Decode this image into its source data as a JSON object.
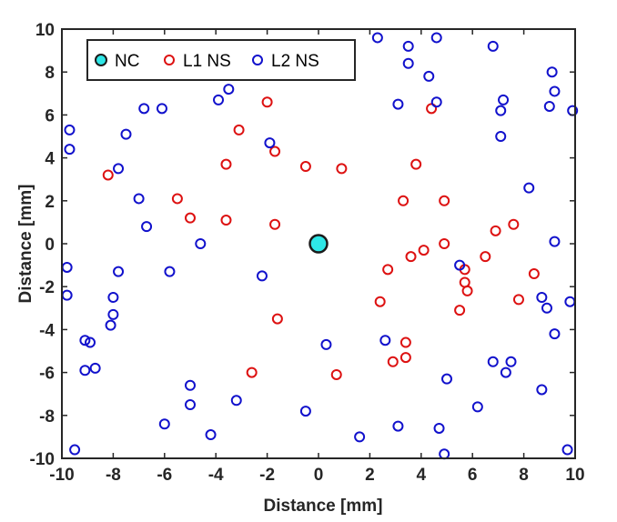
{
  "chart_data": {
    "type": "scatter",
    "xlabel": "Distance [mm]",
    "ylabel": "Distance [mm]",
    "xlim": [
      -10,
      10
    ],
    "ylim": [
      -10,
      10
    ],
    "xticks": [
      -10,
      -8,
      -6,
      -4,
      -2,
      0,
      2,
      4,
      6,
      8,
      10
    ],
    "yticks": [
      -10,
      -8,
      -6,
      -4,
      -2,
      0,
      2,
      4,
      6,
      8,
      10
    ],
    "grid": false,
    "legend": {
      "placement": "top-left",
      "orientation": "horizontal"
    },
    "series": [
      {
        "name": "NC",
        "color": "#1a1a1a",
        "fill": "#2ee6e6",
        "marker": "large-filled-circle",
        "points": [
          [
            0,
            0
          ]
        ]
      },
      {
        "name": "L1 NS",
        "color": "#dd1111",
        "marker": "open-circle",
        "points": [
          [
            -8.2,
            3.2
          ],
          [
            -5.5,
            2.1
          ],
          [
            -5.0,
            1.2
          ],
          [
            -3.6,
            1.1
          ],
          [
            -3.6,
            3.7
          ],
          [
            -3.1,
            5.3
          ],
          [
            -2.0,
            6.6
          ],
          [
            -1.7,
            4.3
          ],
          [
            -1.7,
            0.9
          ],
          [
            -1.6,
            -3.5
          ],
          [
            -2.6,
            -6.0
          ],
          [
            -0.5,
            3.6
          ],
          [
            0.9,
            3.5
          ],
          [
            0.7,
            -6.1
          ],
          [
            2.4,
            -2.7
          ],
          [
            2.7,
            -1.2
          ],
          [
            2.9,
            -5.5
          ],
          [
            3.3,
            2.0
          ],
          [
            3.6,
            -0.6
          ],
          [
            3.4,
            -4.6
          ],
          [
            3.4,
            -5.3
          ],
          [
            3.8,
            3.7
          ],
          [
            4.1,
            -0.3
          ],
          [
            4.4,
            6.3
          ],
          [
            4.9,
            2.0
          ],
          [
            4.9,
            0.0
          ],
          [
            5.5,
            -3.1
          ],
          [
            5.7,
            -1.2
          ],
          [
            5.7,
            -1.8
          ],
          [
            5.8,
            -2.2
          ],
          [
            6.5,
            -0.6
          ],
          [
            6.9,
            0.6
          ],
          [
            7.6,
            0.9
          ],
          [
            7.8,
            -2.6
          ],
          [
            8.4,
            -1.4
          ]
        ]
      },
      {
        "name": "L2 NS",
        "color": "#1111cc",
        "marker": "open-circle",
        "points": [
          [
            -9.7,
            5.3
          ],
          [
            -9.7,
            4.4
          ],
          [
            -9.8,
            -1.1
          ],
          [
            -9.8,
            -2.4
          ],
          [
            -9.5,
            -9.6
          ],
          [
            -9.1,
            -4.5
          ],
          [
            -9.1,
            -5.9
          ],
          [
            -8.9,
            -4.6
          ],
          [
            -8.7,
            -5.8
          ],
          [
            -8.1,
            -3.8
          ],
          [
            -8.0,
            -3.3
          ],
          [
            -8.0,
            -2.5
          ],
          [
            -7.8,
            -1.3
          ],
          [
            -7.8,
            3.5
          ],
          [
            -7.5,
            5.1
          ],
          [
            -7.0,
            2.1
          ],
          [
            -6.7,
            0.8
          ],
          [
            -6.8,
            6.3
          ],
          [
            -6.1,
            6.3
          ],
          [
            -6.0,
            -8.4
          ],
          [
            -5.8,
            -1.3
          ],
          [
            -5.0,
            -6.6
          ],
          [
            -5.0,
            -7.5
          ],
          [
            -4.6,
            0.0
          ],
          [
            -4.2,
            -8.9
          ],
          [
            -3.9,
            6.7
          ],
          [
            -3.5,
            7.2
          ],
          [
            -3.2,
            -7.3
          ],
          [
            -2.2,
            -1.5
          ],
          [
            -1.9,
            4.7
          ],
          [
            -0.5,
            -7.8
          ],
          [
            0.3,
            -4.7
          ],
          [
            1.6,
            -9.0
          ],
          [
            2.3,
            9.6
          ],
          [
            2.6,
            -4.5
          ],
          [
            3.1,
            6.5
          ],
          [
            3.1,
            -8.5
          ],
          [
            3.5,
            9.2
          ],
          [
            3.5,
            8.4
          ],
          [
            4.3,
            7.8
          ],
          [
            4.6,
            9.6
          ],
          [
            4.6,
            6.6
          ],
          [
            4.7,
            -8.6
          ],
          [
            4.9,
            -9.8
          ],
          [
            5.0,
            -6.3
          ],
          [
            5.5,
            -1.0
          ],
          [
            6.2,
            -7.6
          ],
          [
            6.8,
            9.2
          ],
          [
            6.8,
            -5.5
          ],
          [
            7.1,
            5.0
          ],
          [
            7.1,
            6.2
          ],
          [
            7.2,
            6.7
          ],
          [
            7.3,
            -6.0
          ],
          [
            7.5,
            -5.5
          ],
          [
            8.2,
            2.6
          ],
          [
            8.7,
            -2.5
          ],
          [
            8.7,
            -6.8
          ],
          [
            8.9,
            -3.0
          ],
          [
            9.0,
            6.4
          ],
          [
            9.1,
            8.0
          ],
          [
            9.2,
            7.1
          ],
          [
            9.2,
            0.1
          ],
          [
            9.2,
            -4.2
          ],
          [
            9.7,
            -9.6
          ],
          [
            9.8,
            -2.7
          ],
          [
            9.9,
            6.2
          ]
        ]
      }
    ]
  }
}
